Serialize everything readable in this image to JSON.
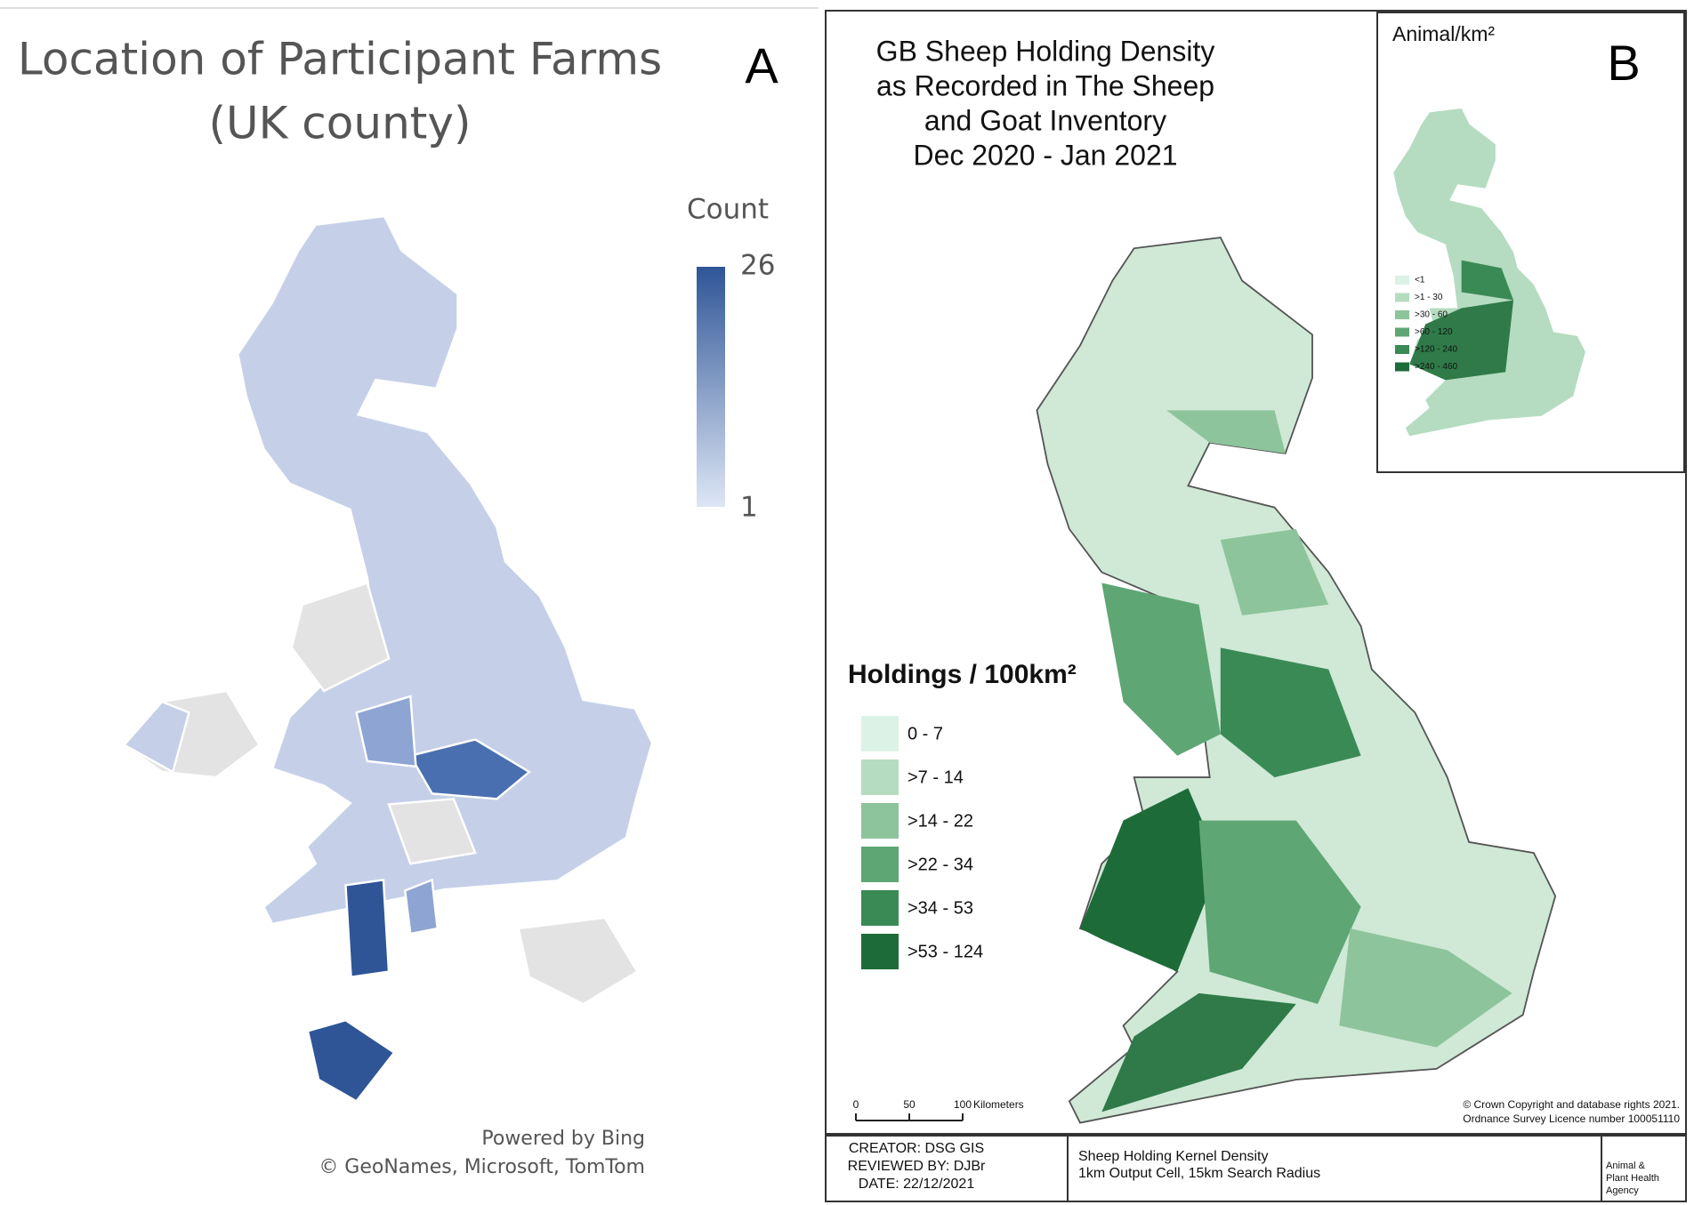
{
  "panel_a": {
    "title_lines": [
      "Location of Participant Farms",
      "(UK county)"
    ],
    "label": "A",
    "legend": {
      "title": "Count",
      "max": 26,
      "min": 1,
      "colors": [
        "#dde6f5",
        "#2f5597"
      ]
    },
    "credits": [
      "Powered by Bing",
      "© GeoNames, Microsoft, TomTom"
    ]
  },
  "panel_b": {
    "label": "B",
    "title_lines": [
      "GB Sheep Holding Density",
      "as Recorded in The Sheep",
      "and Goat Inventory",
      "Dec 2020 - Jan 2021"
    ],
    "legend": {
      "title": "Holdings / 100km²",
      "items": [
        "0 - 7",
        ">7 - 14",
        ">14 - 22",
        ">22 - 34",
        ">34 - 53",
        ">53 - 124"
      ],
      "colors": [
        "#dcf2e6",
        "#b5dcc0",
        "#8ec49c",
        "#5fa675",
        "#3a8a55",
        "#1e6b3a"
      ]
    },
    "inset": {
      "title": "Animal/km²",
      "items": [
        "<1",
        ">1 - 30",
        ">30 - 60",
        ">60 - 120",
        ">120 - 240",
        ">240 - 460"
      ],
      "colors": [
        "#dcf2e6",
        "#b5dcc0",
        "#8ec49c",
        "#5fa675",
        "#3a8a55",
        "#1e6b3a"
      ]
    },
    "scale_bar": {
      "ticks": [
        0,
        50,
        100
      ],
      "unit": "Kilometers"
    },
    "copyright": [
      "© Crown Copyright and database rights 2021.",
      "Ordnance Survey Licence number 100051110"
    ],
    "footer": {
      "credits": [
        "CREATOR: DSG GIS",
        "REVIEWED BY: DJBr",
        "DATE: 22/12/2021"
      ],
      "description": [
        "Sheep Holding Kernel Density",
        "1km Output Cell, 15km Search Radius"
      ],
      "agency": [
        "Animal &",
        "Plant Health",
        "Agency"
      ]
    }
  }
}
